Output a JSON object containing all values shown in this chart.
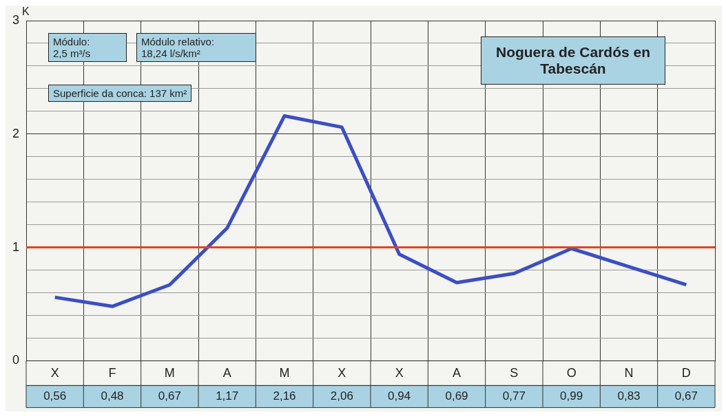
{
  "chart_data": {
    "type": "line",
    "title": "Noguera de Cardós en Tabescán",
    "ylabel": "K",
    "categories": [
      "X",
      "F",
      "M",
      "A",
      "M",
      "X",
      "X",
      "A",
      "S",
      "O",
      "N",
      "D"
    ],
    "series": [
      {
        "color": "#3b4fc2",
        "values": [
          0.56,
          0.48,
          0.67,
          1.17,
          2.16,
          2.06,
          0.94,
          0.69,
          0.77,
          0.99,
          0.83,
          0.67
        ],
        "value_labels": [
          "0,56",
          "0,48",
          "0,67",
          "1,17",
          "2,16",
          "2,06",
          "0,94",
          "0,69",
          "0,77",
          "0,99",
          "0,83",
          "0,67"
        ]
      }
    ],
    "ylim": [
      0,
      3
    ],
    "yticks": [
      0,
      {
        "value": 0.2,
        "label": null
      },
      {
        "value": 0.4,
        "label": null
      },
      {
        "value": 0.6,
        "label": null
      },
      {
        "value": 0.8,
        "label": null
      },
      1,
      {
        "value": 1.2,
        "label": null
      },
      {
        "value": 1.4,
        "label": null
      },
      {
        "value": 1.6,
        "label": null
      },
      {
        "value": 1.8,
        "label": null
      },
      2,
      {
        "value": 2.2,
        "label": null
      },
      {
        "value": 2.4,
        "label": null
      },
      {
        "value": 2.6,
        "label": null
      },
      {
        "value": 2.8,
        "label": null
      },
      3
    ],
    "ref_lines": [
      {
        "axis": "y",
        "value": 1,
        "color": "#e2431e"
      }
    ],
    "annotations": [
      "Módulo: 2,5 m³/s",
      "Módulo relativo: 18,24 l/s/km²",
      "Superficie da conca: 137 km²"
    ],
    "grid": true,
    "legend": false,
    "marker": "none",
    "line_style": "solid"
  }
}
